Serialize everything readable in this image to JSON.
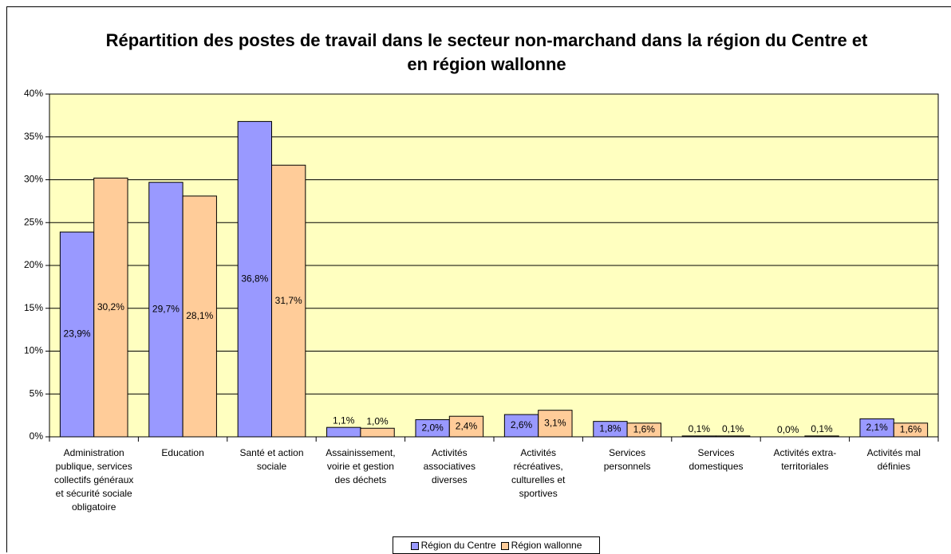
{
  "chart_data": {
    "type": "bar",
    "title": "Répartition des postes de travail dans le secteur non-marchand dans la région du Centre et en région wallonne",
    "categories": [
      "Administration publique, services collectifs généraux et sécurité sociale obligatoire",
      "Education",
      "Santé et action sociale",
      "Assainissement, voirie et gestion des déchets",
      "Activités associatives diverses",
      "Activités récréatives, culturelles et sportives",
      "Services personnels",
      "Services domestiques",
      "Activités extra-territoriales",
      "Activités mal définies"
    ],
    "series": [
      {
        "name": "Région du Centre",
        "color": "#9999ff",
        "values": [
          23.9,
          29.7,
          36.8,
          1.1,
          2.0,
          2.6,
          1.8,
          0.1,
          0.0,
          2.1
        ],
        "value_labels": [
          "23,9%",
          "29,7%",
          "36,8%",
          "1,1%",
          "2,0%",
          "2,6%",
          "1,8%",
          "0,1%",
          "0,0%",
          "2,1%"
        ]
      },
      {
        "name": "Région wallonne",
        "color": "#ffcc99",
        "values": [
          30.2,
          28.1,
          31.7,
          1.0,
          2.4,
          3.1,
          1.6,
          0.1,
          0.1,
          1.6
        ],
        "value_labels": [
          "30,2%",
          "28,1%",
          "31,7%",
          "1,0%",
          "2,4%",
          "3,1%",
          "1,6%",
          "0,1%",
          "0,1%",
          "1,6%"
        ]
      }
    ],
    "ylim": [
      0,
      40
    ],
    "yticks": [
      {
        "value": 0,
        "label": "0%"
      },
      {
        "value": 5,
        "label": "5%"
      },
      {
        "value": 10,
        "label": "10%"
      },
      {
        "value": 15,
        "label": "15%"
      },
      {
        "value": 20,
        "label": "20%"
      },
      {
        "value": 25,
        "label": "25%"
      },
      {
        "value": 30,
        "label": "30%"
      },
      {
        "value": 35,
        "label": "35%"
      },
      {
        "value": 40,
        "label": "40%"
      }
    ],
    "grid": true,
    "background": "#ffffc0",
    "legend": "bottom"
  }
}
